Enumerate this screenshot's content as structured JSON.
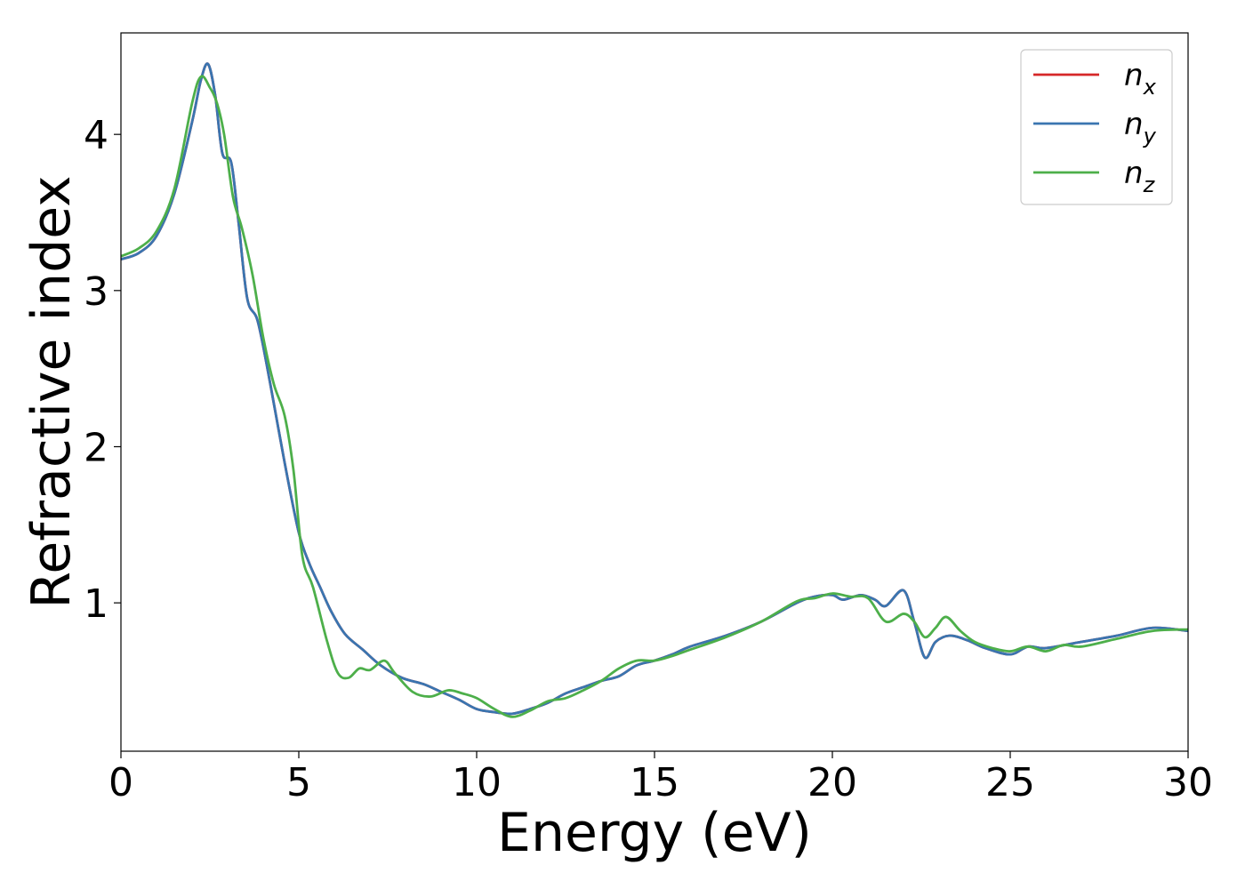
{
  "chart_data": {
    "type": "line",
    "title": "",
    "xlabel": "Energy (eV)",
    "ylabel": "Refractive index",
    "xlim": [
      0,
      30
    ],
    "ylim": [
      0.05,
      4.65
    ],
    "xticks": [
      0,
      5,
      10,
      15,
      20,
      25,
      30
    ],
    "yticks": [
      1,
      2,
      3,
      4
    ],
    "grid": false,
    "legend_position": "top-right",
    "series": [
      {
        "name": "n",
        "subscript": "x",
        "color": "#d62728",
        "points": [
          [
            0,
            3.2
          ],
          [
            0.5,
            3.24
          ],
          [
            1,
            3.35
          ],
          [
            1.5,
            3.62
          ],
          [
            2,
            4.08
          ],
          [
            2.25,
            4.35
          ],
          [
            2.45,
            4.45
          ],
          [
            2.65,
            4.25
          ],
          [
            2.85,
            3.88
          ],
          [
            3.1,
            3.82
          ],
          [
            3.3,
            3.45
          ],
          [
            3.55,
            2.95
          ],
          [
            3.85,
            2.8
          ],
          [
            4.2,
            2.4
          ],
          [
            4.6,
            1.9
          ],
          [
            5,
            1.45
          ],
          [
            5.3,
            1.25
          ],
          [
            5.6,
            1.1
          ],
          [
            5.9,
            0.95
          ],
          [
            6.3,
            0.8
          ],
          [
            6.8,
            0.7
          ],
          [
            7.3,
            0.6
          ],
          [
            7.9,
            0.52
          ],
          [
            8.5,
            0.48
          ],
          [
            9,
            0.43
          ],
          [
            9.5,
            0.38
          ],
          [
            10,
            0.32
          ],
          [
            10.5,
            0.3
          ],
          [
            11,
            0.29
          ],
          [
            11.5,
            0.32
          ],
          [
            12,
            0.36
          ],
          [
            12.5,
            0.42
          ],
          [
            13,
            0.46
          ],
          [
            13.5,
            0.5
          ],
          [
            14,
            0.53
          ],
          [
            14.5,
            0.6
          ],
          [
            15,
            0.63
          ],
          [
            15.5,
            0.67
          ],
          [
            16,
            0.72
          ],
          [
            17,
            0.79
          ],
          [
            18,
            0.88
          ],
          [
            19,
            1.0
          ],
          [
            19.5,
            1.04
          ],
          [
            20,
            1.05
          ],
          [
            20.3,
            1.02
          ],
          [
            20.8,
            1.05
          ],
          [
            21.2,
            1.02
          ],
          [
            21.5,
            0.98
          ],
          [
            22,
            1.08
          ],
          [
            22.3,
            0.88
          ],
          [
            22.6,
            0.65
          ],
          [
            22.9,
            0.75
          ],
          [
            23.3,
            0.79
          ],
          [
            23.8,
            0.76
          ],
          [
            24.3,
            0.71
          ],
          [
            25,
            0.67
          ],
          [
            25.5,
            0.72
          ],
          [
            26,
            0.71
          ],
          [
            27,
            0.75
          ],
          [
            28,
            0.79
          ],
          [
            29,
            0.84
          ],
          [
            30,
            0.82
          ]
        ]
      },
      {
        "name": "n",
        "subscript": "y",
        "color": "#3a75b0",
        "points": [
          [
            0,
            3.2
          ],
          [
            0.5,
            3.24
          ],
          [
            1,
            3.35
          ],
          [
            1.5,
            3.62
          ],
          [
            2,
            4.08
          ],
          [
            2.25,
            4.35
          ],
          [
            2.45,
            4.45
          ],
          [
            2.65,
            4.25
          ],
          [
            2.85,
            3.88
          ],
          [
            3.1,
            3.82
          ],
          [
            3.3,
            3.45
          ],
          [
            3.55,
            2.95
          ],
          [
            3.85,
            2.8
          ],
          [
            4.2,
            2.4
          ],
          [
            4.6,
            1.9
          ],
          [
            5,
            1.45
          ],
          [
            5.3,
            1.25
          ],
          [
            5.6,
            1.1
          ],
          [
            5.9,
            0.95
          ],
          [
            6.3,
            0.8
          ],
          [
            6.8,
            0.7
          ],
          [
            7.3,
            0.6
          ],
          [
            7.9,
            0.52
          ],
          [
            8.5,
            0.48
          ],
          [
            9,
            0.43
          ],
          [
            9.5,
            0.38
          ],
          [
            10,
            0.32
          ],
          [
            10.5,
            0.3
          ],
          [
            11,
            0.29
          ],
          [
            11.5,
            0.32
          ],
          [
            12,
            0.36
          ],
          [
            12.5,
            0.42
          ],
          [
            13,
            0.46
          ],
          [
            13.5,
            0.5
          ],
          [
            14,
            0.53
          ],
          [
            14.5,
            0.6
          ],
          [
            15,
            0.63
          ],
          [
            15.5,
            0.67
          ],
          [
            16,
            0.72
          ],
          [
            17,
            0.79
          ],
          [
            18,
            0.88
          ],
          [
            19,
            1.0
          ],
          [
            19.5,
            1.04
          ],
          [
            20,
            1.05
          ],
          [
            20.3,
            1.02
          ],
          [
            20.8,
            1.05
          ],
          [
            21.2,
            1.02
          ],
          [
            21.5,
            0.98
          ],
          [
            22,
            1.08
          ],
          [
            22.3,
            0.88
          ],
          [
            22.6,
            0.65
          ],
          [
            22.9,
            0.75
          ],
          [
            23.3,
            0.79
          ],
          [
            23.8,
            0.76
          ],
          [
            24.3,
            0.71
          ],
          [
            25,
            0.67
          ],
          [
            25.5,
            0.72
          ],
          [
            26,
            0.71
          ],
          [
            27,
            0.75
          ],
          [
            28,
            0.79
          ],
          [
            29,
            0.84
          ],
          [
            30,
            0.82
          ]
        ]
      },
      {
        "name": "n",
        "subscript": "z",
        "color": "#4daf4a",
        "points": [
          [
            0,
            3.22
          ],
          [
            0.5,
            3.27
          ],
          [
            1,
            3.38
          ],
          [
            1.5,
            3.65
          ],
          [
            2,
            4.2
          ],
          [
            2.25,
            4.37
          ],
          [
            2.5,
            4.3
          ],
          [
            2.7,
            4.2
          ],
          [
            2.9,
            4.0
          ],
          [
            3.15,
            3.6
          ],
          [
            3.4,
            3.4
          ],
          [
            3.7,
            3.1
          ],
          [
            4.0,
            2.7
          ],
          [
            4.3,
            2.4
          ],
          [
            4.6,
            2.2
          ],
          [
            4.85,
            1.85
          ],
          [
            5.1,
            1.3
          ],
          [
            5.4,
            1.1
          ],
          [
            5.8,
            0.75
          ],
          [
            6.1,
            0.55
          ],
          [
            6.4,
            0.52
          ],
          [
            6.7,
            0.58
          ],
          [
            7.0,
            0.57
          ],
          [
            7.4,
            0.63
          ],
          [
            7.7,
            0.55
          ],
          [
            8.2,
            0.43
          ],
          [
            8.7,
            0.4
          ],
          [
            9.2,
            0.44
          ],
          [
            9.6,
            0.42
          ],
          [
            10,
            0.39
          ],
          [
            10.5,
            0.32
          ],
          [
            11,
            0.27
          ],
          [
            11.5,
            0.31
          ],
          [
            12,
            0.37
          ],
          [
            12.5,
            0.39
          ],
          [
            13,
            0.44
          ],
          [
            13.5,
            0.5
          ],
          [
            14,
            0.58
          ],
          [
            14.5,
            0.63
          ],
          [
            15,
            0.63
          ],
          [
            15.5,
            0.66
          ],
          [
            16,
            0.7
          ],
          [
            17,
            0.78
          ],
          [
            18,
            0.88
          ],
          [
            19,
            1.01
          ],
          [
            19.5,
            1.03
          ],
          [
            20,
            1.06
          ],
          [
            20.5,
            1.04
          ],
          [
            21,
            1.03
          ],
          [
            21.5,
            0.88
          ],
          [
            22,
            0.93
          ],
          [
            22.3,
            0.88
          ],
          [
            22.6,
            0.78
          ],
          [
            22.9,
            0.84
          ],
          [
            23.2,
            0.91
          ],
          [
            23.6,
            0.82
          ],
          [
            24,
            0.75
          ],
          [
            24.5,
            0.71
          ],
          [
            25,
            0.69
          ],
          [
            25.5,
            0.72
          ],
          [
            26,
            0.69
          ],
          [
            26.5,
            0.73
          ],
          [
            27,
            0.72
          ],
          [
            28,
            0.77
          ],
          [
            29,
            0.82
          ],
          [
            30,
            0.83
          ]
        ]
      }
    ]
  }
}
